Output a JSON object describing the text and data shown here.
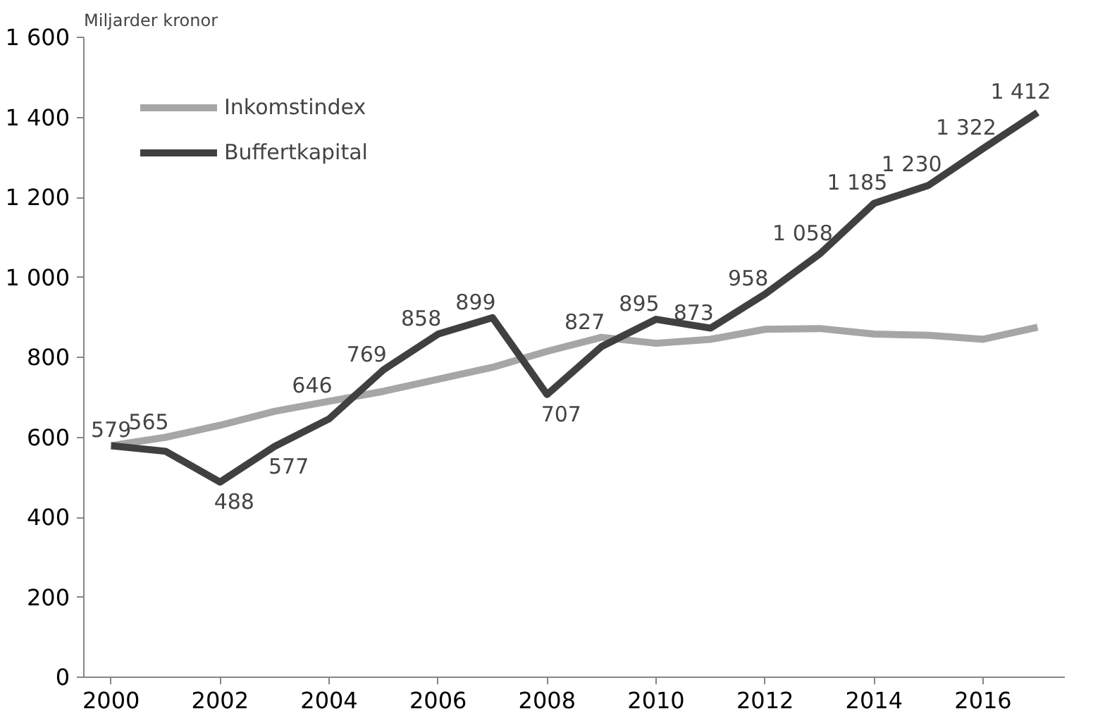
{
  "chart_data": {
    "type": "line",
    "ylabel": "Miljarder kronor",
    "x": [
      2000,
      2001,
      2002,
      2003,
      2004,
      2005,
      2006,
      2007,
      2008,
      2009,
      2010,
      2011,
      2012,
      2013,
      2014,
      2015,
      2016,
      2017
    ],
    "series": [
      {
        "name": "Inkomstindex",
        "color": "#a6a6a6",
        "values": [
          579,
          600,
          630,
          665,
          690,
          715,
          745,
          775,
          815,
          850,
          835,
          845,
          870,
          872,
          858,
          855,
          845,
          875
        ]
      },
      {
        "name": "Buffertkapital",
        "color": "#404040",
        "values": [
          579,
          565,
          488,
          577,
          646,
          769,
          858,
          899,
          707,
          827,
          895,
          873,
          958,
          1058,
          1185,
          1230,
          1322,
          1412
        ],
        "value_labels": [
          "579",
          "565",
          "488",
          "577",
          "646",
          "769",
          "858",
          "899",
          "707",
          "827",
          "895",
          "873",
          "958",
          "1 058",
          "1 185",
          "1 230",
          "1 322",
          "1 412"
        ]
      }
    ],
    "xlim": [
      1999.5,
      2017.5
    ],
    "xticks": [
      2000,
      2002,
      2004,
      2006,
      2008,
      2010,
      2012,
      2014,
      2016
    ],
    "ylim": [
      0,
      1600
    ],
    "yticks": [
      0,
      200,
      400,
      600,
      800,
      {
        "value": 1000,
        "label": "1 000"
      },
      {
        "value": 1200,
        "label": "1 200"
      },
      {
        "value": 1400,
        "label": "1 400"
      },
      {
        "value": 1600,
        "label": "1 600"
      }
    ],
    "grid": false,
    "legend": "top left",
    "marker": "none",
    "line_style": "solid"
  }
}
